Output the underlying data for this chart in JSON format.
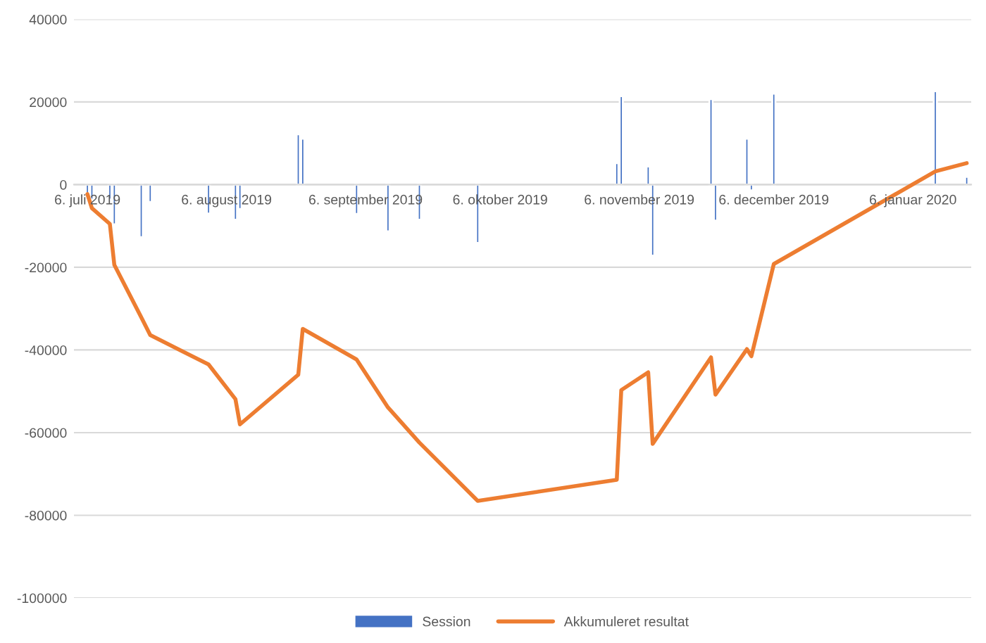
{
  "chart_data": {
    "type": "bar",
    "x": [
      "2019-07-06",
      "2019-07-07",
      "2019-07-11",
      "2019-07-12",
      "2019-07-18",
      "2019-07-20",
      "2019-08-02",
      "2019-08-08",
      "2019-08-09",
      "2019-08-22",
      "2019-08-23",
      "2019-09-04",
      "2019-09-11",
      "2019-09-18",
      "2019-10-01",
      "2019-11-01",
      "2019-11-02",
      "2019-11-08",
      "2019-11-09",
      "2019-11-22",
      "2019-11-23",
      "2019-11-30",
      "2019-12-01",
      "2019-12-06",
      "2020-01-11",
      "2020-01-18"
    ],
    "series": [
      {
        "name": "Session",
        "color": "#4472c4",
        "values": [
          -3600,
          -3600,
          -3600,
          -9600,
          -12700,
          -4200,
          -7000,
          -8500,
          -5900,
          12200,
          11100,
          -7100,
          -11300,
          -8500,
          -14100,
          5200,
          21400,
          4400,
          -17200,
          20700,
          -8700,
          11100,
          -1400,
          22000,
          22600,
          1900
        ]
      },
      {
        "name": "Akkumuleret resultat",
        "type": "line",
        "color": "#ed7d31",
        "values": [
          -2300,
          -5700,
          -9500,
          -19400,
          -32100,
          -36400,
          -43500,
          -51900,
          -58000,
          -46000,
          -34900,
          -42300,
          -53900,
          -62400,
          -76500,
          -71400,
          -49700,
          -45400,
          -62700,
          -41800,
          -50800,
          -39800,
          -41500,
          -19200,
          3200,
          5200
        ]
      }
    ],
    "xlim": [
      "2019-07-03",
      "2020-01-19"
    ],
    "xticks": [
      {
        "value": "2019-07-06",
        "label": "6. juli 2019"
      },
      {
        "value": "2019-08-06",
        "label": "6. august 2019"
      },
      {
        "value": "2019-09-06",
        "label": "6. september 2019"
      },
      {
        "value": "2019-10-06",
        "label": "6. oktober 2019"
      },
      {
        "value": "2019-11-06",
        "label": "6. november 2019"
      },
      {
        "value": "2019-12-06",
        "label": "6. december 2019"
      },
      {
        "value": "2020-01-06",
        "label": "6. januar 2020"
      }
    ],
    "ylim": [
      -100000,
      40000
    ],
    "yticks": [
      -100000,
      -80000,
      -60000,
      -40000,
      -20000,
      0,
      20000,
      40000
    ],
    "grid": "y",
    "legend": "bottom",
    "marker": "none",
    "line_style": "solid"
  }
}
